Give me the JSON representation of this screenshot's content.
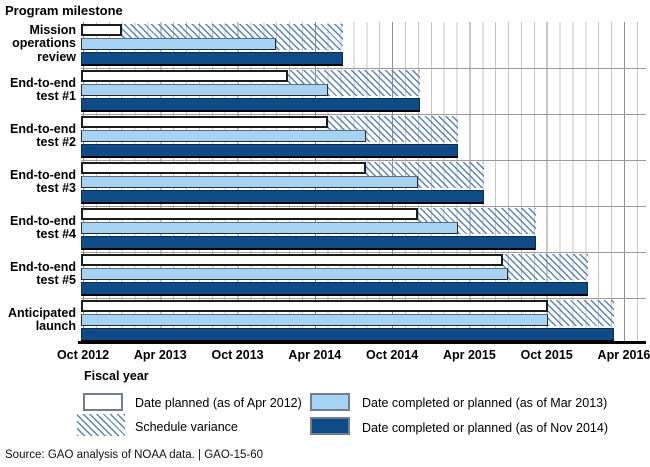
{
  "title": "Program milestone",
  "axis": {
    "label": "Fiscal year",
    "ticks": [
      "Oct 2012",
      "Apr 2013",
      "Oct 2013",
      "Apr 2014",
      "Oct 2014",
      "Apr 2015",
      "Oct 2015",
      "Apr 2016"
    ]
  },
  "legend": {
    "planned": "Date planned (as of Apr 2012)",
    "mar2013": "Date completed or planned (as of Mar 2013)",
    "variance": "Schedule variance",
    "nov2014": "Date completed or planned (as of Nov 2014)"
  },
  "source": "Source: GAO analysis of NOAA data.  |  GAO-15-60",
  "colors": {
    "planned_fill": "#ffffff",
    "mar2013_fill": "#a6d3f4",
    "nov2014_fill": "#0f4c87",
    "hatch_line": "#5b84b8",
    "grid_minor": "#c6c6c6",
    "grid_major": "#8f8f8f"
  },
  "chart_data": {
    "type": "bar",
    "orientation": "horizontal-gantt",
    "title": "Program milestone",
    "xlabel": "Fiscal year",
    "x_axis": {
      "start": "Oct 2012",
      "end": "Apr 2016",
      "tick_labels": [
        "Oct 2012",
        "Apr 2013",
        "Oct 2013",
        "Apr 2014",
        "Oct 2014",
        "Apr 2015",
        "Oct 2015",
        "Apr 2016"
      ],
      "tick_interval_months": 6,
      "range_months": [
        0,
        42
      ],
      "minor_grid_interval_months": 1
    },
    "categories": [
      "Mission operations review",
      "End-to-end test #1",
      "End-to-end test #2",
      "End-to-end test #3",
      "End-to-end test #4",
      "End-to-end test #5",
      "Anticipated launch"
    ],
    "categories_display": [
      "Mission\noperations\nreview",
      "End-to-end\ntest #1",
      "End-to-end\ntest #2",
      "End-to-end\ntest #3",
      "End-to-end\ntest #4",
      "End-to-end\ntest #5",
      "Anticipated\nlaunch"
    ],
    "series": [
      {
        "name": "Date planned (as of Apr 2012)",
        "key": "planned",
        "start": "Oct 2012",
        "end_months": [
          3.0,
          15.9,
          19.0,
          22.0,
          26.0,
          32.6,
          36.1
        ],
        "end_dates": [
          "Jan 2013",
          "Feb 2014",
          "May 2014",
          "Aug 2014",
          "Dec 2014",
          "Jun 2015",
          "Oct 2015"
        ]
      },
      {
        "name": "Date completed or planned (as of Mar 2013)",
        "key": "mar2013",
        "start": "Oct 2012",
        "end_months": [
          15.0,
          19.0,
          22.0,
          26.0,
          29.1,
          33.0,
          36.1
        ],
        "end_dates": [
          "Jan 2014",
          "May 2014",
          "Aug 2014",
          "Dec 2014",
          "Mar 2015",
          "Jul 2015",
          "Oct 2015"
        ]
      },
      {
        "name": "Date completed or planned (as of Nov 2014)",
        "key": "nov2014",
        "start": "Oct 2012",
        "end_months": [
          20.2,
          26.2,
          29.1,
          31.1,
          35.2,
          39.2,
          41.2
        ],
        "end_dates": [
          "Jun 2014",
          "Dec 2014",
          "Mar 2015",
          "May 2015",
          "Sep 2015",
          "Jan 2016",
          "Mar 2016"
        ]
      }
    ],
    "variance": {
      "name": "Schedule variance",
      "note": "Hatched region spans from end of planned bar to end of Nov 2014 bar for each milestone",
      "from_months": [
        3.0,
        15.9,
        19.0,
        22.0,
        26.0,
        32.6,
        36.1
      ],
      "to_months": [
        20.2,
        26.2,
        29.1,
        31.1,
        35.2,
        39.2,
        41.2
      ]
    },
    "legend_position": "bottom",
    "grid": "vertical-monthly"
  }
}
